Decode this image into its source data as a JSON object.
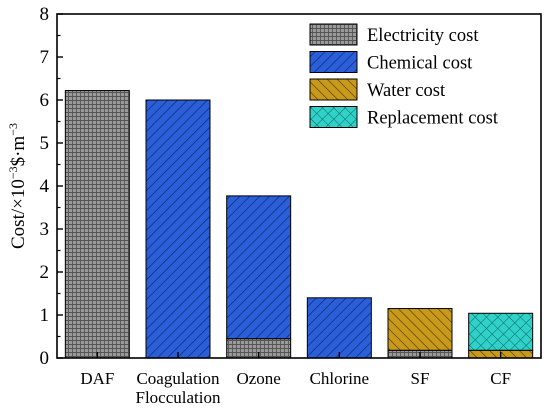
{
  "chart_data": {
    "type": "bar",
    "stacked": true,
    "categories": [
      [
        "DAF"
      ],
      [
        "Coagulation",
        "Flocculation"
      ],
      [
        "Ozone"
      ],
      [
        "Chlorine"
      ],
      [
        "SF"
      ],
      [
        "CF"
      ]
    ],
    "ylabel": "Cost/×10⁻³$·m⁻³",
    "ylabel_parts": {
      "base": "Cost/×10",
      "exp1": "−3",
      "mid": "$·m",
      "exp2": "−3"
    },
    "ylim": [
      0,
      8
    ],
    "yticks": [
      0,
      1,
      2,
      3,
      4,
      5,
      6,
      7,
      8
    ],
    "grid": false,
    "legend_position": "top-right",
    "series": [
      {
        "name": "Electricity cost",
        "color": "#9a9a9a",
        "pattern": "grid",
        "values": [
          6.22,
          0,
          0.45,
          0,
          0.18,
          0
        ]
      },
      {
        "name": "Chemical cost",
        "color": "#2b5fd9",
        "pattern": "diagonal",
        "values": [
          0,
          6.0,
          3.32,
          1.4,
          0,
          0
        ]
      },
      {
        "name": "Water cost",
        "color": "#c99a1a",
        "pattern": "diagonal-reverse",
        "values": [
          0,
          0,
          0,
          0,
          0.97,
          0.18
        ]
      },
      {
        "name": "Replacement cost",
        "color": "#2fd1c8",
        "pattern": "crosshatch",
        "values": [
          0,
          0,
          0,
          0,
          0,
          0.86
        ]
      }
    ]
  }
}
